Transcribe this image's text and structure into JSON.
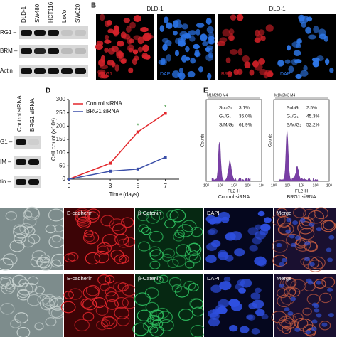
{
  "panel_a": {
    "lanes": [
      "DLD-1",
      "SW480",
      "HCT116",
      "LoVo",
      "SW620"
    ],
    "rows": [
      "RG1 –",
      "BRM –",
      "Actin"
    ]
  },
  "panel_b": {
    "label": "B",
    "titles": [
      "DLD-1",
      "DLD-1"
    ],
    "image_labels": [
      "BRG1",
      "DAPI",
      "BRM",
      "DAPI"
    ]
  },
  "panel_c": {
    "lanes": [
      "Control siRNA",
      "BRG1 siRNA"
    ],
    "rows": [
      "G1 –",
      "IM –",
      "tin –"
    ]
  },
  "chart_data": {
    "type": "line",
    "label": "D",
    "xlabel": "Time (days)",
    "ylabel": "Cell count (×10⁴)",
    "x": [
      0,
      3,
      5,
      7
    ],
    "xlim": [
      0,
      8
    ],
    "xticks": [
      0,
      3,
      5,
      7
    ],
    "ylim": [
      0,
      300
    ],
    "yticks": [
      0,
      50,
      100,
      150,
      200,
      250,
      300
    ],
    "legend": "upper left",
    "series": [
      {
        "name": "Control siRNA",
        "color": "#e3262b",
        "values": [
          0,
          60,
          178,
          248
        ]
      },
      {
        "name": "BRG1 siRNA",
        "color": "#3a4ea8",
        "values": [
          0,
          30,
          38,
          83
        ]
      }
    ],
    "annotations": [
      {
        "text": "*",
        "x": 5
      },
      {
        "text": "*",
        "x": 7
      }
    ]
  },
  "panel_e": {
    "label": "E",
    "xticks": [
      "10⁰",
      "10¹",
      "10²",
      "10³",
      "10⁴"
    ],
    "plots": [
      {
        "gates": "M1M2M3  M4",
        "ylabel": "Counts",
        "xlabel": "FL2-H",
        "caption": "Control siRNA",
        "stats": [
          {
            "name": "SubG₁",
            "value": "3.1%"
          },
          {
            "name": "G₀/G₁",
            "value": "35.0%"
          },
          {
            "name": "S/M/G₂",
            "value": "61.9%"
          }
        ]
      },
      {
        "gates": "M1M2M3  M4",
        "ylabel": "Counts",
        "xlabel": "FL2-H",
        "caption": "BRG1 siRNA",
        "stats": [
          {
            "name": "SubG₁",
            "value": "2.5%"
          },
          {
            "name": "G₀/G₁",
            "value": "45.3%"
          },
          {
            "name": "S/M/G₂",
            "value": "52.2%"
          }
        ]
      }
    ]
  },
  "micrographs": {
    "rows": [
      [
        "E-cadherin",
        "β-Catenin",
        "DAPI",
        "Merge"
      ],
      [
        "E-cadherin",
        "β-Catenin",
        "DAPI",
        "Merge"
      ]
    ]
  }
}
